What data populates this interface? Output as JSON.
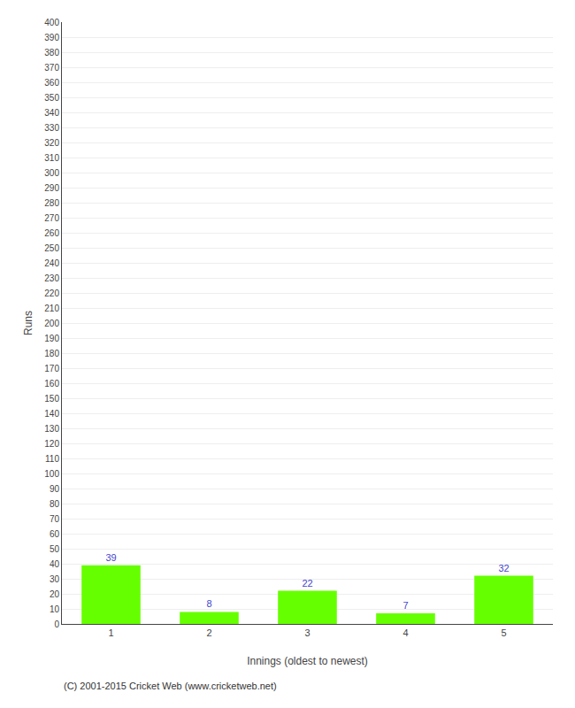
{
  "chart_data": {
    "type": "bar",
    "categories": [
      1,
      2,
      3,
      4,
      5
    ],
    "values": [
      39,
      8,
      22,
      7,
      32
    ],
    "color": "#66ff00",
    "xlabel": "Innings (oldest to newest)",
    "ylabel": "Runs",
    "ylim": [
      0,
      400
    ],
    "yticks": [
      0,
      10,
      20,
      30,
      40,
      50,
      60,
      70,
      80,
      90,
      100,
      110,
      120,
      130,
      140,
      150,
      160,
      170,
      180,
      190,
      200,
      210,
      220,
      230,
      240,
      250,
      260,
      270,
      280,
      290,
      300,
      310,
      320,
      330,
      340,
      350,
      360,
      370,
      380,
      390,
      400
    ],
    "grid": true,
    "data_labels": true,
    "annotations": [
      "(C) 2001-2015 Cricket Web (www.cricketweb.net)"
    ]
  }
}
